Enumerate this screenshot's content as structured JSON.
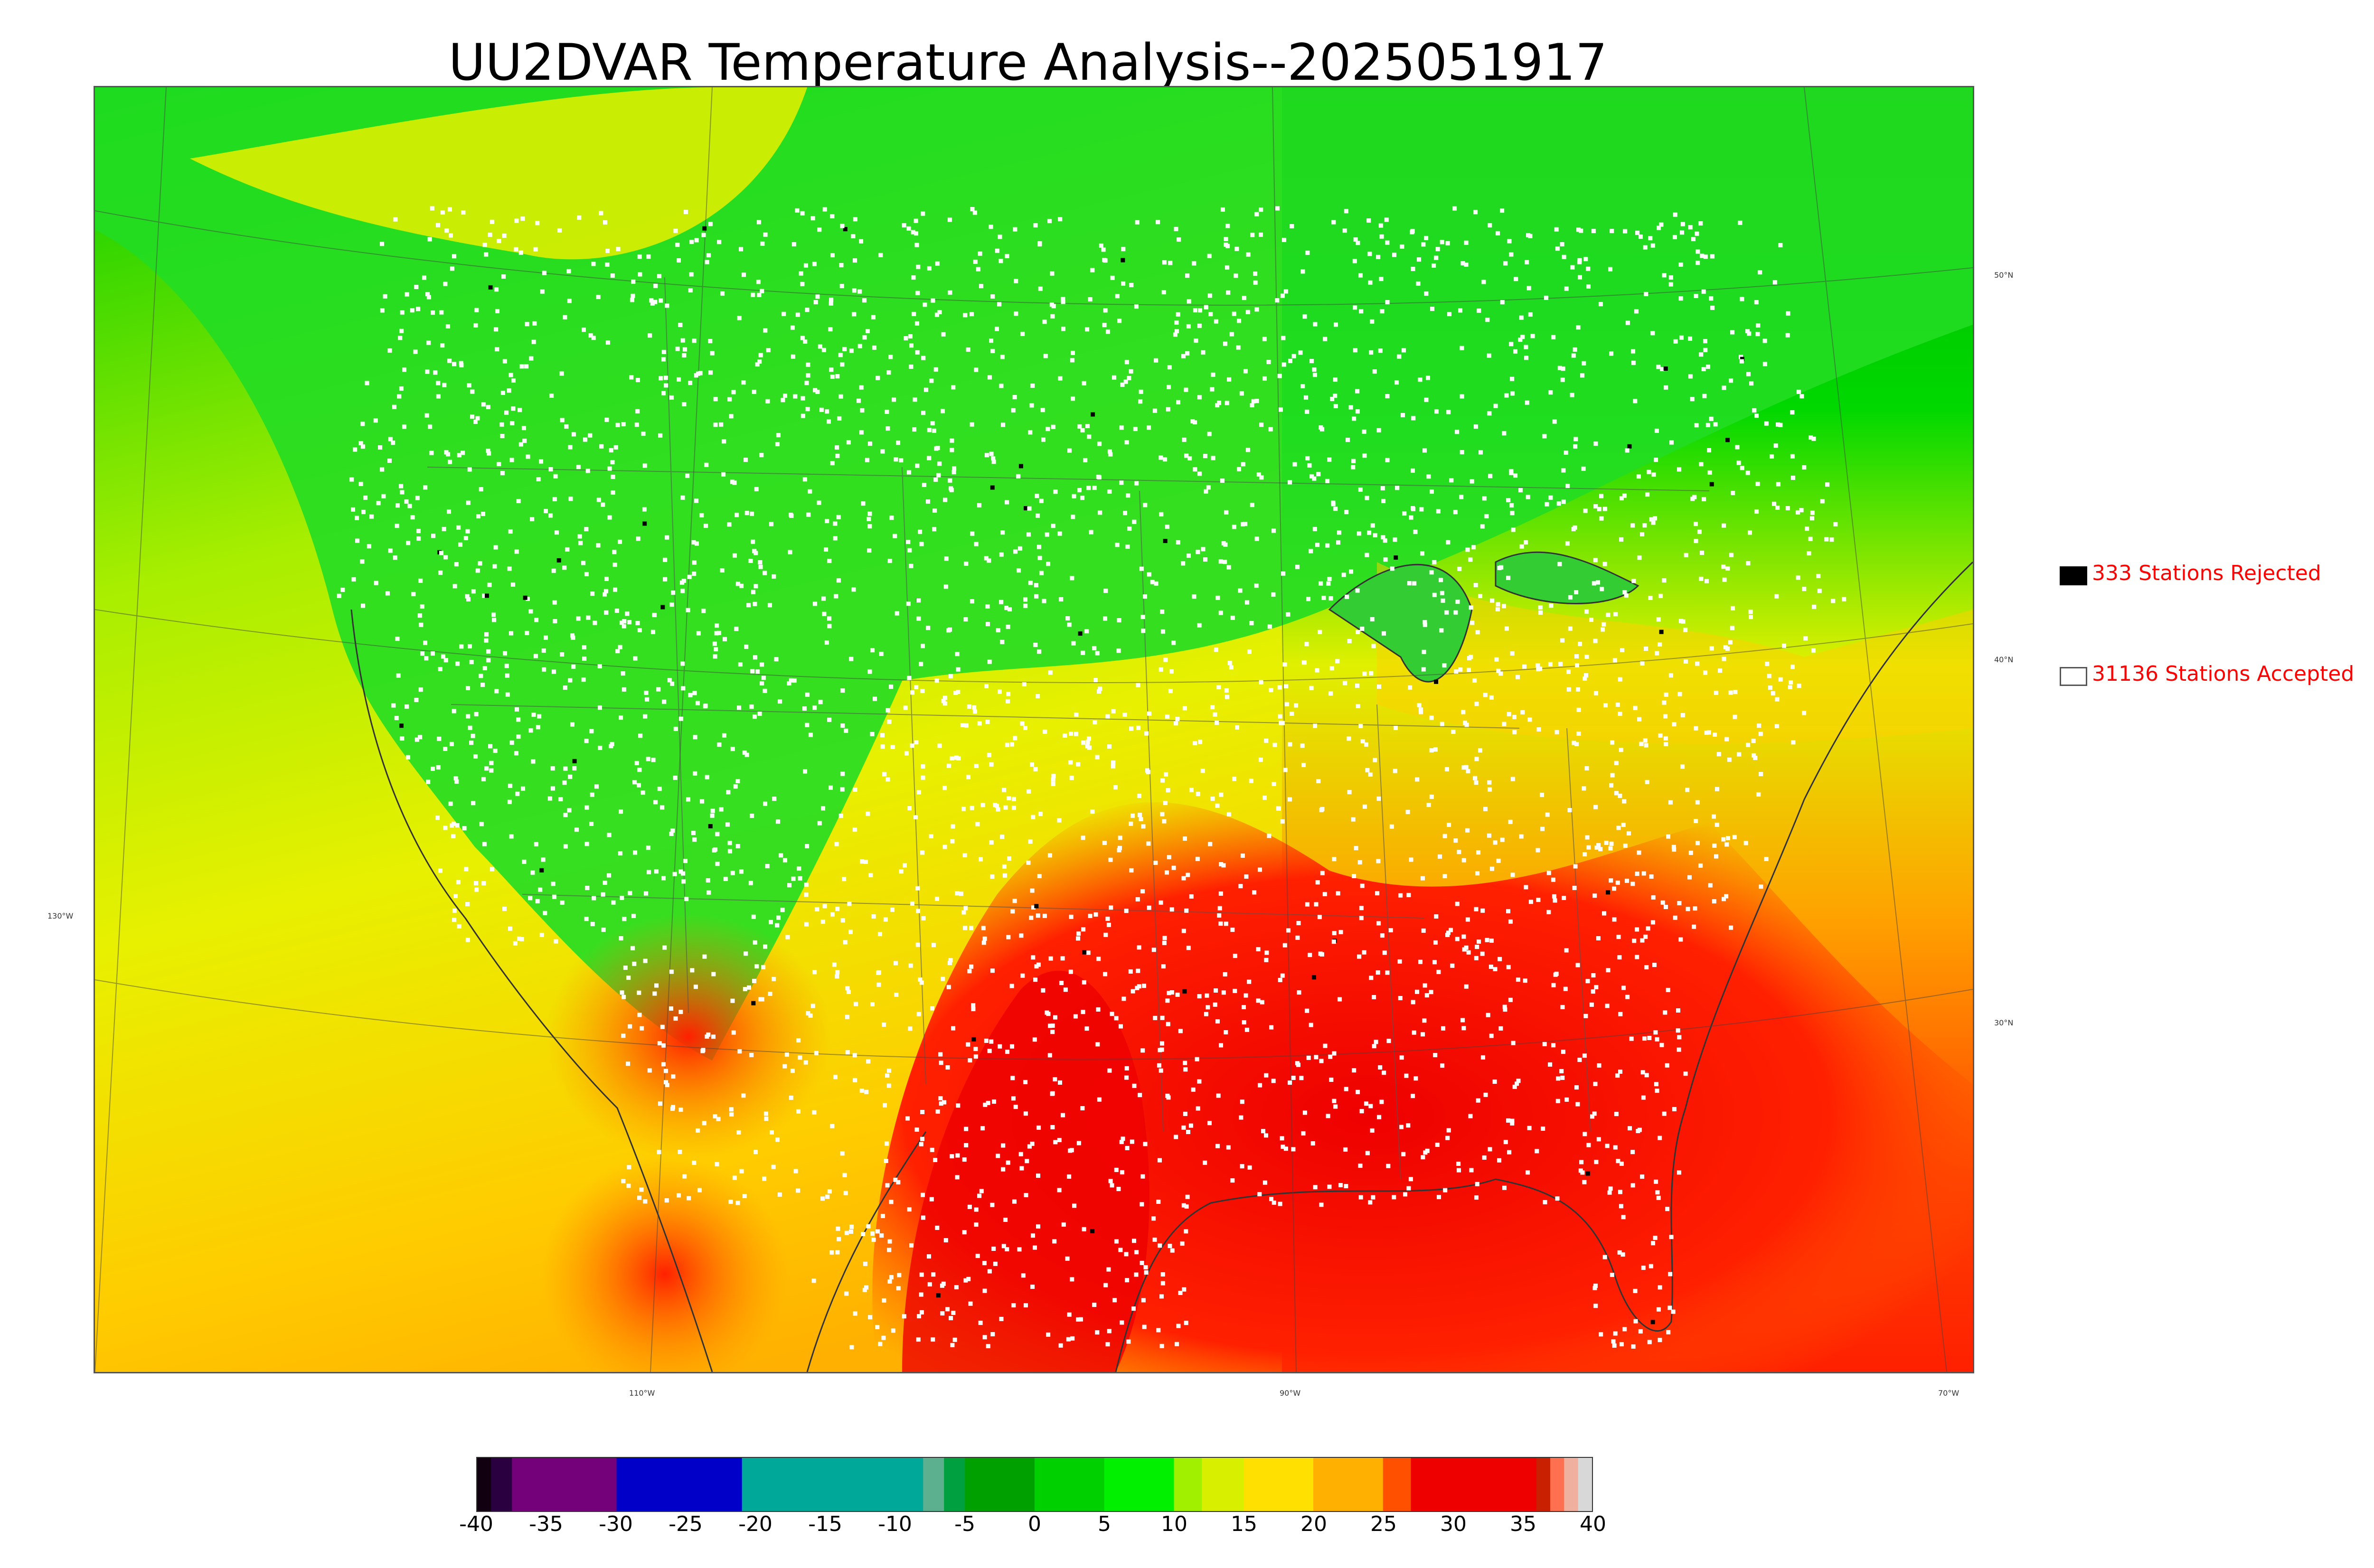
{
  "title": "UU2DVAR Temperature Analysis--2025051917",
  "map": {
    "lat_labels": [
      "50°N",
      "40°N",
      "30°N"
    ],
    "lon_labels": [
      "130°W",
      "110°W",
      "90°W",
      "70°W"
    ],
    "colors": {
      "cold": "#00cc00",
      "mild": "#d8f000",
      "warm": "#ffaa00",
      "hot": "#ee0000",
      "station_accepted": "#ffffff",
      "station_rejected": "#000000"
    }
  },
  "legend": {
    "rejected": {
      "count": "333",
      "label": "333 Stations Rejected",
      "color": "#000000"
    },
    "accepted": {
      "count": "31136",
      "label": "31136 Stations Accepted",
      "color": "#ffffff"
    }
  },
  "colorbar": {
    "min": -40,
    "max": 40,
    "ticks": [
      "-40",
      "-35",
      "-30",
      "-25",
      "-20",
      "-15",
      "-10",
      "-5",
      "0",
      "5",
      "10",
      "15",
      "20",
      "25",
      "30",
      "35",
      "40"
    ],
    "segments": [
      {
        "from": -40,
        "to": -39,
        "color": "#100010"
      },
      {
        "from": -39,
        "to": -37.5,
        "color": "#2a0040"
      },
      {
        "from": -37.5,
        "to": -30,
        "color": "#74007a"
      },
      {
        "from": -30,
        "to": -21,
        "color": "#0000c8"
      },
      {
        "from": -21,
        "to": -8,
        "color": "#00a89a"
      },
      {
        "from": -8,
        "to": -6.5,
        "color": "#5cb090"
      },
      {
        "from": -6.5,
        "to": -5,
        "color": "#00a040"
      },
      {
        "from": -5,
        "to": 0,
        "color": "#00a000"
      },
      {
        "from": 0,
        "to": 5,
        "color": "#00d000"
      },
      {
        "from": 5,
        "to": 10,
        "color": "#00f000"
      },
      {
        "from": 10,
        "to": 12,
        "color": "#a0f000"
      },
      {
        "from": 12,
        "to": 15,
        "color": "#d8f000"
      },
      {
        "from": 15,
        "to": 20,
        "color": "#ffe000"
      },
      {
        "from": 20,
        "to": 25,
        "color": "#ffb000"
      },
      {
        "from": 25,
        "to": 27,
        "color": "#ff5000"
      },
      {
        "from": 27,
        "to": 36,
        "color": "#ee0000"
      },
      {
        "from": 36,
        "to": 37,
        "color": "#c82000"
      },
      {
        "from": 37,
        "to": 38,
        "color": "#ff7050"
      },
      {
        "from": 38,
        "to": 39,
        "color": "#f0b0a0"
      },
      {
        "from": 39,
        "to": 40,
        "color": "#d8d8d8"
      }
    ]
  }
}
